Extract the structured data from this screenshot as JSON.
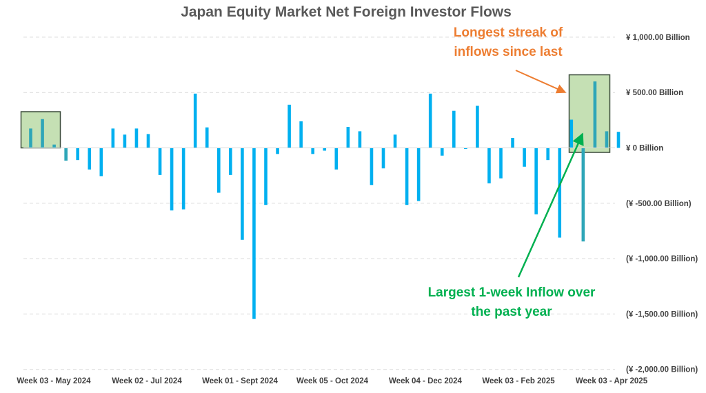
{
  "chart_data": {
    "type": "bar",
    "title": "Japan Equity Market Net Foreign Investor Flows",
    "ylim": [
      -2000,
      1000
    ],
    "y_ticks": [
      1000,
      500,
      0,
      -500,
      -1000,
      -1500,
      -2000
    ],
    "y_tick_labels": [
      "¥ 1,000.00  Billion",
      "¥ 500.00  Billion",
      "¥ 0 Billion",
      "(¥ -500.00  Billion)",
      "(¥ -1,000.00  Billion)",
      "(¥ -1,500.00  Billion)",
      "(¥ -2,000.00  Billion)"
    ],
    "x_tick_labels": [
      "Week 03 - May 2024",
      "Week 02 - Jul 2024",
      "Week 01 - Sept 2024",
      "Week 05 - Oct 2024",
      "Week 04 - Dec 2024",
      "Week 03 - Feb 2025",
      "Week 03 - Apr 2025"
    ],
    "bar_color": "#00B0F0",
    "grid": true,
    "series": [
      {
        "values": [
          175,
          260,
          30,
          -115,
          -110,
          -195,
          -255,
          175,
          120,
          175,
          125,
          -245,
          -565,
          -555,
          490,
          185,
          -405,
          -245,
          -830,
          -1545,
          -515,
          -55,
          390,
          240,
          -55,
          -25,
          -195,
          190,
          150,
          -335,
          -185,
          120,
          -515,
          -480,
          490,
          -70,
          335,
          -10,
          380,
          -320,
          -275,
          90,
          -170,
          -600,
          -110,
          -810,
          255,
          -845,
          600,
          150,
          145
        ]
      }
    ]
  },
  "annotations": {
    "streak_line1": "Longest streak of",
    "streak_line2": "inflows since last",
    "inflow_line1": "Largest 1-week Inflow over",
    "inflow_line2": "the past year",
    "streak_color": "#ED7D31",
    "inflow_color": "#00B050",
    "highlight_fill": "#C5E0B4"
  }
}
